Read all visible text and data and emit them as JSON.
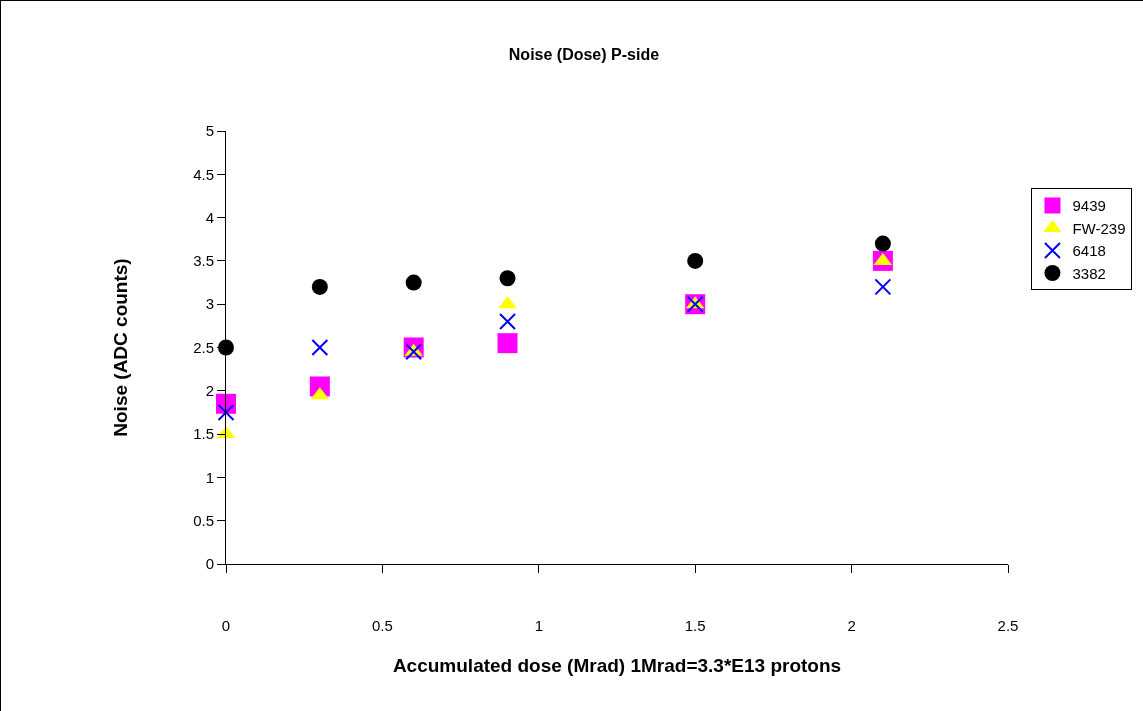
{
  "chart_data": {
    "type": "scatter",
    "title": "Noise (Dose) P-side",
    "xlabel": "Accumulated dose (Mrad) 1Mrad=3.3*E13 protons",
    "ylabel": "Noise (ADC counts)",
    "x": [
      0,
      0.3,
      0.6,
      0.9,
      1.5,
      2.1
    ],
    "series": [
      {
        "name": "9439",
        "color": "#ff00ff",
        "marker": "square",
        "values": [
          1.85,
          2.05,
          2.5,
          2.55,
          3.0,
          3.5
        ]
      },
      {
        "name": "FW-239",
        "color": "#ffff00",
        "marker": "triangle",
        "values": [
          1.5,
          1.95,
          2.45,
          3.0,
          3.0,
          3.5
        ]
      },
      {
        "name": "6418",
        "color": "#0000ff",
        "marker": "cross",
        "values": [
          1.75,
          2.5,
          2.45,
          2.8,
          3.0,
          3.2
        ]
      },
      {
        "name": "3382",
        "color": "#000000",
        "marker": "circle",
        "values": [
          2.5,
          3.2,
          3.25,
          3.3,
          3.5,
          3.7
        ]
      }
    ],
    "xlim": [
      0,
      2.5
    ],
    "xticks": [
      0,
      0.5,
      1,
      1.5,
      2,
      2.5
    ],
    "ylim": [
      0,
      5
    ],
    "yticks": [
      0,
      0.5,
      1,
      1.5,
      2,
      2.5,
      3,
      3.5,
      4,
      4.5,
      5
    ],
    "grid": false,
    "legend": "right"
  }
}
